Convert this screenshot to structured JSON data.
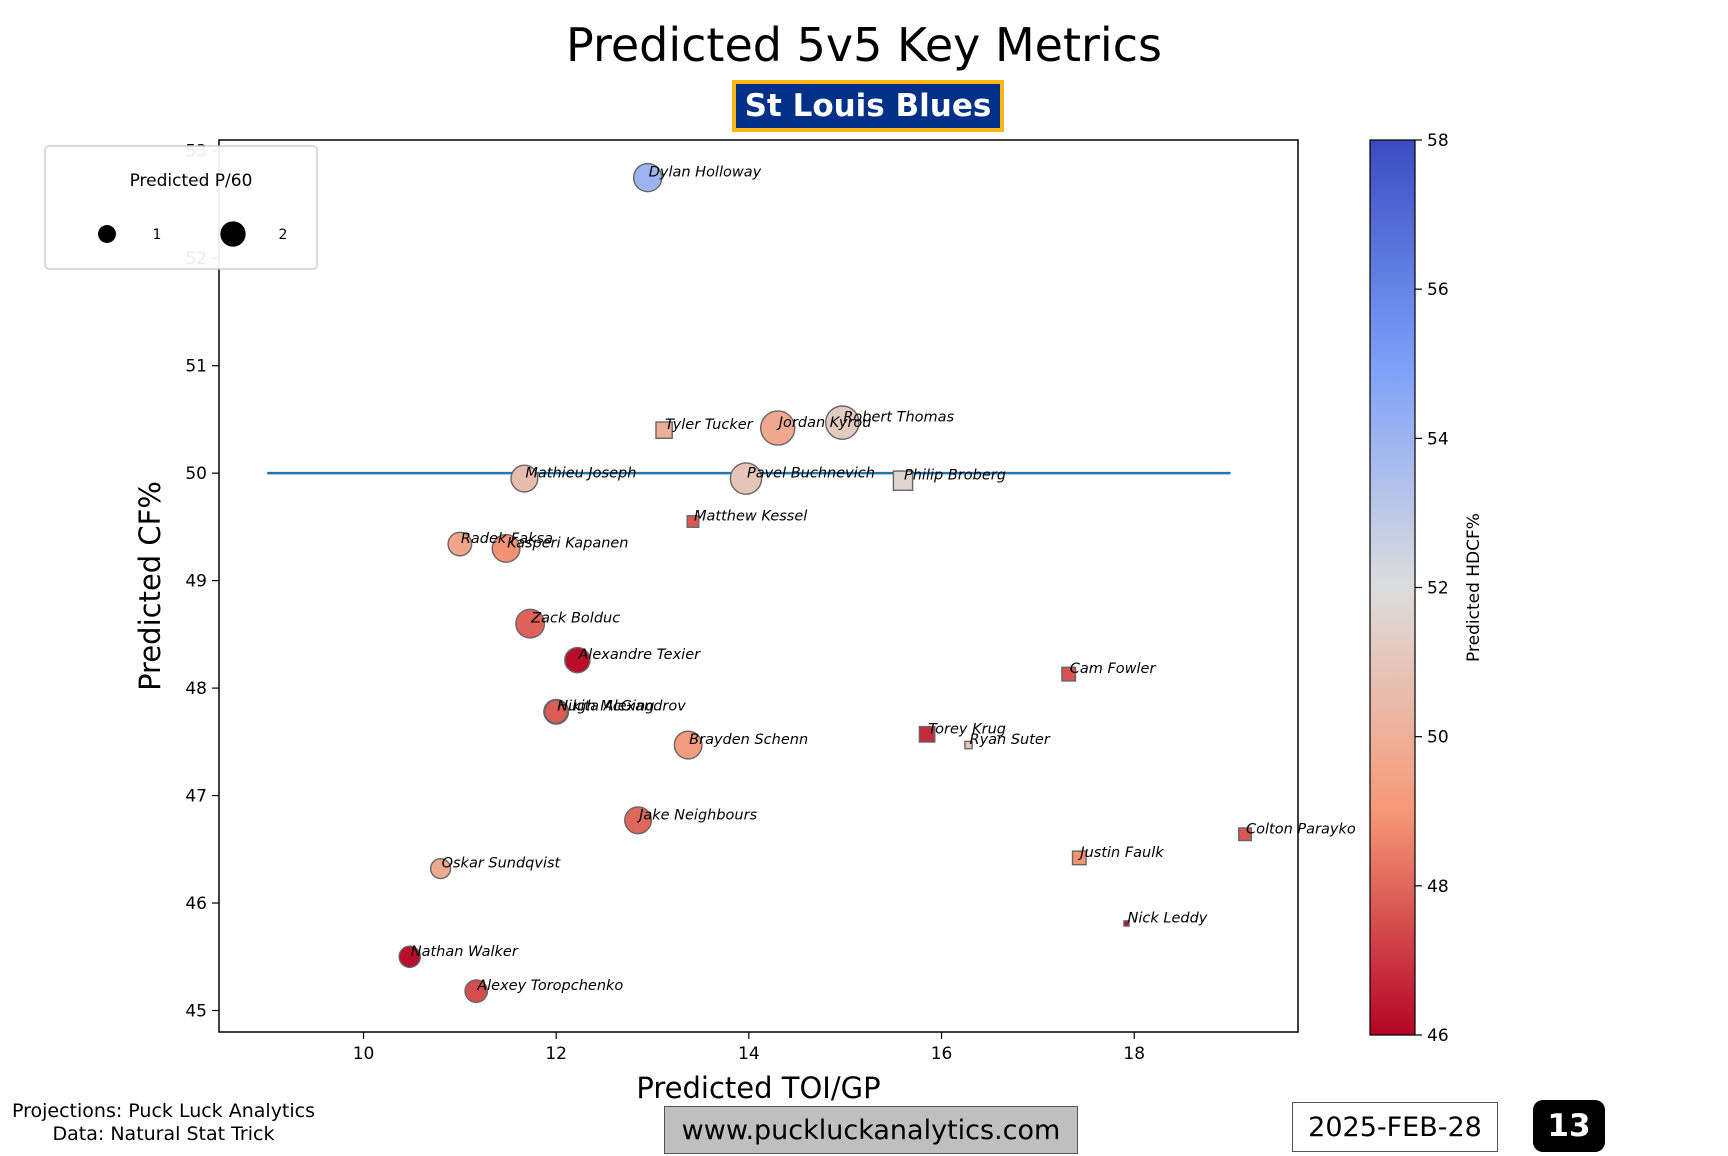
{
  "header": {
    "title": "Predicted 5v5 Key Metrics",
    "team": "St Louis Blues",
    "team_colors": {
      "background": "#003087",
      "border": "#fcb514"
    }
  },
  "legend": {
    "title": "Predicted P/60",
    "entries": [
      {
        "label": "1",
        "value": 1
      },
      {
        "label": "2",
        "value": 2
      }
    ]
  },
  "colorbar": {
    "label": "Predicted HDCF%",
    "min": 46,
    "max": 58,
    "ticks": [
      "46",
      "48",
      "50",
      "52",
      "54",
      "56",
      "58"
    ],
    "colormap": "coolwarm_r"
  },
  "footer": {
    "source_line1": "Projections: Puck Luck Analytics",
    "source_line2": "Data: Natural Stat Trick",
    "url": "www.puckluckanalytics.com",
    "date": "2025-FEB-28",
    "page": "13"
  },
  "chart_data": {
    "type": "scatter",
    "title": "Predicted 5v5 Key Metrics",
    "xlabel": "Predicted TOI/GP",
    "ylabel": "Predicted CF%",
    "xlim": [
      8.5,
      19.7
    ],
    "ylim": [
      44.8,
      53.1
    ],
    "x_ticks": [
      "10",
      "12",
      "14",
      "16",
      "18"
    ],
    "y_ticks": [
      "45",
      "46",
      "47",
      "48",
      "49",
      "50",
      "51",
      "52",
      "53"
    ],
    "reference_line": {
      "y": 50,
      "x_start": 9,
      "x_end": 19,
      "color": "#1f77b4"
    },
    "marker_shapes": {
      "circle": "forward",
      "square": "defense"
    },
    "size_encoding": "Predicted P/60",
    "color_encoding": "Predicted HDCF%",
    "points": [
      {
        "name": "Dylan Holloway",
        "x": 12.95,
        "y": 52.75,
        "p60": 1.5,
        "hdcf": 54.0,
        "shape": "circle"
      },
      {
        "name": "Tyler Tucker",
        "x": 13.12,
        "y": 50.4,
        "p60": 0.5,
        "hdcf": 50.0,
        "shape": "square"
      },
      {
        "name": "Jordan Kyrou",
        "x": 14.3,
        "y": 50.42,
        "p60": 2.2,
        "hdcf": 49.7,
        "shape": "circle"
      },
      {
        "name": "Robert Thomas",
        "x": 14.97,
        "y": 50.47,
        "p60": 2.1,
        "hdcf": 51.2,
        "shape": "circle"
      },
      {
        "name": "Mathieu Joseph",
        "x": 11.67,
        "y": 49.95,
        "p60": 1.35,
        "hdcf": 50.6,
        "shape": "circle"
      },
      {
        "name": "Pavel Buchnevich",
        "x": 13.97,
        "y": 49.95,
        "p60": 1.85,
        "hdcf": 50.9,
        "shape": "circle"
      },
      {
        "name": "Philip Broberg",
        "x": 15.6,
        "y": 49.93,
        "p60": 0.7,
        "hdcf": 51.7,
        "shape": "square"
      },
      {
        "name": "Matthew Kessel",
        "x": 13.42,
        "y": 49.55,
        "p60": 0.25,
        "hdcf": 47.7,
        "shape": "square"
      },
      {
        "name": "Radek Faksa",
        "x": 11.0,
        "y": 49.34,
        "p60": 1.05,
        "hdcf": 49.6,
        "shape": "circle"
      },
      {
        "name": "Kasperi Kapanen",
        "x": 11.48,
        "y": 49.3,
        "p60": 1.45,
        "hdcf": 48.9,
        "shape": "circle"
      },
      {
        "name": "Zack Bolduc",
        "x": 11.73,
        "y": 48.6,
        "p60": 1.55,
        "hdcf": 47.9,
        "shape": "circle"
      },
      {
        "name": "Alexandre Texier",
        "x": 12.22,
        "y": 48.26,
        "p60": 1.2,
        "hdcf": 46.2,
        "shape": "circle"
      },
      {
        "name": "Cam Fowler",
        "x": 17.32,
        "y": 48.13,
        "p60": 0.35,
        "hdcf": 47.6,
        "shape": "square"
      },
      {
        "name": "Nikita Alexandrov",
        "x": 12.0,
        "y": 47.78,
        "p60": 1.15,
        "hdcf": 47.5,
        "shape": "circle"
      },
      {
        "name": "Hugh McGing",
        "x": 12.0,
        "y": 47.78,
        "p60": 1.0,
        "hdcf": 47.8,
        "shape": "circle"
      },
      {
        "name": "Torey Krug",
        "x": 15.85,
        "y": 47.57,
        "p60": 0.45,
        "hdcf": 46.8,
        "shape": "square"
      },
      {
        "name": "Ryan Suter",
        "x": 16.28,
        "y": 47.47,
        "p60": 0.1,
        "hdcf": 51.0,
        "shape": "square"
      },
      {
        "name": "Brayden Schenn",
        "x": 13.37,
        "y": 47.47,
        "p60": 1.45,
        "hdcf": 49.2,
        "shape": "circle"
      },
      {
        "name": "Jake Neighbours",
        "x": 12.85,
        "y": 46.77,
        "p60": 1.35,
        "hdcf": 48.0,
        "shape": "circle"
      },
      {
        "name": "Colton Parayko",
        "x": 19.15,
        "y": 46.64,
        "p60": 0.3,
        "hdcf": 47.7,
        "shape": "square"
      },
      {
        "name": "Justin Faulk",
        "x": 17.43,
        "y": 46.42,
        "p60": 0.35,
        "hdcf": 48.9,
        "shape": "square"
      },
      {
        "name": "Oskar Sundqvist",
        "x": 10.8,
        "y": 46.32,
        "p60": 0.75,
        "hdcf": 49.8,
        "shape": "circle"
      },
      {
        "name": "Nick Leddy",
        "x": 17.92,
        "y": 45.81,
        "p60": 0.05,
        "hdcf": 46.2,
        "shape": "square"
      },
      {
        "name": "Nathan Walker",
        "x": 10.48,
        "y": 45.5,
        "p60": 0.85,
        "hdcf": 46.2,
        "shape": "circle"
      },
      {
        "name": "Alexey Toropchenko",
        "x": 11.17,
        "y": 45.18,
        "p60": 0.95,
        "hdcf": 47.5,
        "shape": "circle"
      }
    ]
  }
}
